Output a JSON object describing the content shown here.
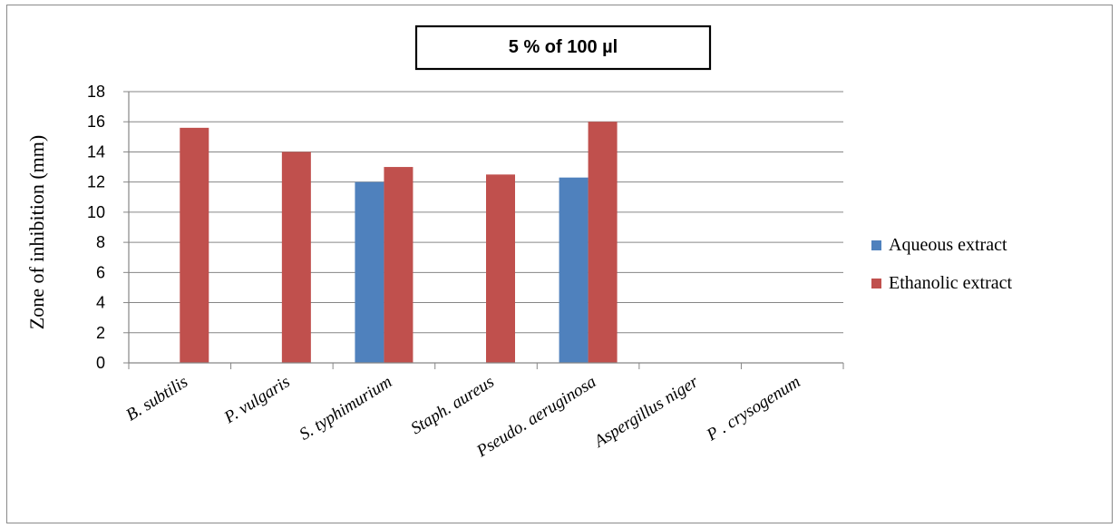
{
  "chart_data": {
    "type": "bar",
    "title": "5 % of 100 µl",
    "xlabel": "",
    "ylabel": "Zone of inhibition (mm)",
    "categories": [
      "B. subtilis",
      "P. vulgaris",
      "S. typhimurium",
      "Staph. aureus",
      "Pseudo. aeruginosa",
      "Aspergillus niger",
      "P . crysogenum"
    ],
    "series": [
      {
        "name": "Aqueous extract",
        "color": "#4f81bd",
        "values": [
          0,
          0,
          12,
          0,
          12.3,
          0,
          0
        ]
      },
      {
        "name": "Ethanolic extract",
        "color": "#c0504d",
        "values": [
          15.6,
          14,
          13,
          12.5,
          16,
          0,
          0
        ]
      }
    ],
    "ylim": [
      0,
      18
    ],
    "yticks": [
      0,
      2,
      4,
      6,
      8,
      10,
      12,
      14,
      16,
      18
    ],
    "grid": true,
    "legend_position": "right"
  }
}
